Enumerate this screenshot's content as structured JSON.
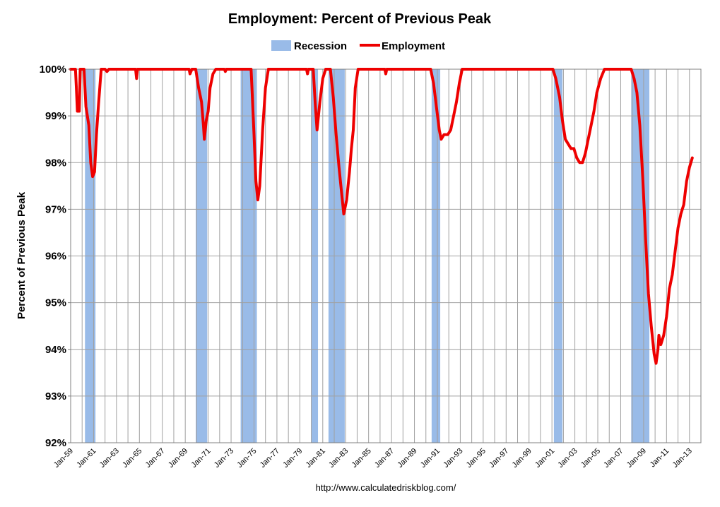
{
  "chart_data": {
    "type": "line",
    "title": "Employment: Percent of Previous Peak",
    "ylabel": "Percent of Previous Peak",
    "xlabel": "",
    "source": "http://www.calculatedriskblog.com/",
    "ylim": [
      92,
      100
    ],
    "xlim": [
      "1959-01",
      "2013-12"
    ],
    "y_ticks": [
      "92%",
      "93%",
      "94%",
      "95%",
      "96%",
      "97%",
      "98%",
      "99%",
      "100%"
    ],
    "x_ticks": [
      "Jan-59",
      "Jan-61",
      "Jan-63",
      "Jan-65",
      "Jan-67",
      "Jan-69",
      "Jan-71",
      "Jan-73",
      "Jan-75",
      "Jan-77",
      "Jan-79",
      "Jan-81",
      "Jan-83",
      "Jan-85",
      "Jan-87",
      "Jan-89",
      "Jan-91",
      "Jan-93",
      "Jan-95",
      "Jan-97",
      "Jan-99",
      "Jan-01",
      "Jan-03",
      "Jan-05",
      "Jan-07",
      "Jan-09",
      "Jan-11",
      "Jan-13"
    ],
    "grid": true,
    "legend_position": "top-center",
    "legend": {
      "recession_label": "Recession",
      "employment_label": "Employment"
    },
    "colors": {
      "employment": "#ee0000",
      "recession": "#99bbe8",
      "grid": "#a0a0a0"
    },
    "recessions": [
      {
        "start": "1960-04",
        "end": "1961-02"
      },
      {
        "start": "1969-12",
        "end": "1970-11"
      },
      {
        "start": "1973-11",
        "end": "1975-03"
      },
      {
        "start": "1980-01",
        "end": "1980-07"
      },
      {
        "start": "1981-07",
        "end": "1982-11"
      },
      {
        "start": "1990-07",
        "end": "1991-03"
      },
      {
        "start": "2001-03",
        "end": "2001-11"
      },
      {
        "start": "2007-12",
        "end": "2009-06"
      }
    ],
    "series": [
      {
        "name": "Employment",
        "points": [
          [
            "1959-01",
            100
          ],
          [
            "1959-06",
            100
          ],
          [
            "1959-07",
            99.6
          ],
          [
            "1959-08",
            99.1
          ],
          [
            "1959-09",
            99.1
          ],
          [
            "1959-10",
            99.1
          ],
          [
            "1959-11",
            100
          ],
          [
            "1960-01",
            100
          ],
          [
            "1960-03",
            100
          ],
          [
            "1960-05",
            99.2
          ],
          [
            "1960-08",
            98.8
          ],
          [
            "1960-10",
            98.0
          ],
          [
            "1960-12",
            97.7
          ],
          [
            "1961-02",
            97.8
          ],
          [
            "1961-04",
            98.6
          ],
          [
            "1961-06",
            99.2
          ],
          [
            "1961-09",
            100
          ],
          [
            "1962-01",
            100
          ],
          [
            "1962-03",
            99.95
          ],
          [
            "1962-05",
            100
          ],
          [
            "1963-01",
            100
          ],
          [
            "1964-09",
            100
          ],
          [
            "1964-10",
            99.8
          ],
          [
            "1964-11",
            100
          ],
          [
            "1969-05",
            100
          ],
          [
            "1969-06",
            99.9
          ],
          [
            "1969-08",
            100
          ],
          [
            "1969-12",
            100
          ],
          [
            "1970-03",
            99.6
          ],
          [
            "1970-06",
            99.3
          ],
          [
            "1970-08",
            98.8
          ],
          [
            "1970-09",
            98.5
          ],
          [
            "1970-11",
            98.9
          ],
          [
            "1971-01",
            99.1
          ],
          [
            "1971-03",
            99.6
          ],
          [
            "1971-06",
            99.9
          ],
          [
            "1971-09",
            100
          ],
          [
            "1972-06",
            100
          ],
          [
            "1972-07",
            99.95
          ],
          [
            "1972-08",
            100
          ],
          [
            "1974-10",
            100
          ],
          [
            "1975-01",
            98.6
          ],
          [
            "1975-03",
            97.6
          ],
          [
            "1975-05",
            97.2
          ],
          [
            "1975-07",
            97.5
          ],
          [
            "1975-10",
            98.7
          ],
          [
            "1976-01",
            99.6
          ],
          [
            "1976-04",
            100
          ],
          [
            "1979-08",
            100
          ],
          [
            "1979-09",
            99.9
          ],
          [
            "1979-10",
            100
          ],
          [
            "1980-03",
            100
          ],
          [
            "1980-05",
            99.3
          ],
          [
            "1980-07",
            98.7
          ],
          [
            "1980-10",
            99.3
          ],
          [
            "1981-01",
            99.8
          ],
          [
            "1981-04",
            100
          ],
          [
            "1981-09",
            100
          ],
          [
            "1981-12",
            99.4
          ],
          [
            "1982-03",
            98.6
          ],
          [
            "1982-06",
            97.9
          ],
          [
            "1982-09",
            97.3
          ],
          [
            "1982-11",
            96.9
          ],
          [
            "1983-02",
            97.2
          ],
          [
            "1983-05",
            97.8
          ],
          [
            "1983-07",
            98.3
          ],
          [
            "1983-09",
            98.7
          ],
          [
            "1983-11",
            99.6
          ],
          [
            "1984-02",
            100
          ],
          [
            "1986-06",
            100
          ],
          [
            "1986-07",
            99.9
          ],
          [
            "1986-08",
            100
          ],
          [
            "1990-06",
            100
          ],
          [
            "1990-09",
            99.7
          ],
          [
            "1990-12",
            99.2
          ],
          [
            "1991-03",
            98.7
          ],
          [
            "1991-05",
            98.5
          ],
          [
            "1991-08",
            98.6
          ],
          [
            "1991-12",
            98.6
          ],
          [
            "1992-03",
            98.7
          ],
          [
            "1992-06",
            99.0
          ],
          [
            "1992-09",
            99.3
          ],
          [
            "1992-12",
            99.7
          ],
          [
            "1993-03",
            100
          ],
          [
            "2001-02",
            100
          ],
          [
            "2001-05",
            99.8
          ],
          [
            "2001-09",
            99.4
          ],
          [
            "2001-12",
            98.9
          ],
          [
            "2002-03",
            98.5
          ],
          [
            "2002-06",
            98.4
          ],
          [
            "2002-09",
            98.3
          ],
          [
            "2002-12",
            98.3
          ],
          [
            "2003-03",
            98.1
          ],
          [
            "2003-06",
            98.0
          ],
          [
            "2003-09",
            98.0
          ],
          [
            "2003-12",
            98.2
          ],
          [
            "2004-03",
            98.5
          ],
          [
            "2004-06",
            98.8
          ],
          [
            "2004-09",
            99.1
          ],
          [
            "2004-12",
            99.5
          ],
          [
            "2005-04",
            99.8
          ],
          [
            "2005-08",
            100
          ],
          [
            "2007-12",
            100
          ],
          [
            "2008-03",
            99.8
          ],
          [
            "2008-06",
            99.5
          ],
          [
            "2008-09",
            98.8
          ],
          [
            "2008-12",
            97.7
          ],
          [
            "2009-03",
            96.4
          ],
          [
            "2009-06",
            95.2
          ],
          [
            "2009-09",
            94.5
          ],
          [
            "2009-12",
            93.9
          ],
          [
            "2010-02",
            93.7
          ],
          [
            "2010-04",
            94.0
          ],
          [
            "2010-05",
            94.3
          ],
          [
            "2010-07",
            94.1
          ],
          [
            "2010-10",
            94.3
          ],
          [
            "2011-01",
            94.7
          ],
          [
            "2011-04",
            95.3
          ],
          [
            "2011-07",
            95.6
          ],
          [
            "2011-10",
            96.1
          ],
          [
            "2012-01",
            96.6
          ],
          [
            "2012-04",
            96.9
          ],
          [
            "2012-07",
            97.1
          ],
          [
            "2012-10",
            97.6
          ],
          [
            "2013-01",
            97.9
          ],
          [
            "2013-04",
            98.1
          ]
        ]
      }
    ]
  }
}
